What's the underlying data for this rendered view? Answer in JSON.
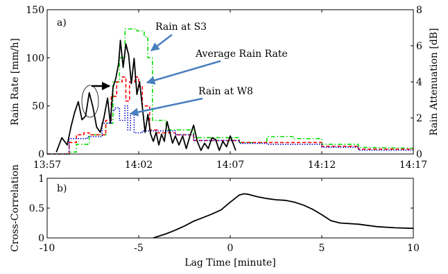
{
  "chart_data": [
    {
      "type": "line",
      "panel_label": "a)",
      "xlabel": "",
      "x_ticks": [
        "13:57",
        "14:02",
        "14:07",
        "14:12",
        "14:17"
      ],
      "xlim": [
        0,
        20
      ],
      "ylabel": "Rain Rate [mm/h]",
      "ylim": [
        0,
        150
      ],
      "y_ticks": [
        0,
        50,
        100,
        150
      ],
      "y2label": "Rain Attenuation [dB]",
      "y2lim": [
        0,
        8
      ],
      "y2_ticks": [
        0,
        2,
        4,
        6,
        8
      ],
      "annotations": [
        {
          "text": "Rain at S3",
          "points_to": "S3 rain peak"
        },
        {
          "text": "Average Rain Rate",
          "points_to": "average rain rate peak"
        },
        {
          "text": "Rain at W8",
          "points_to": "W8 rain peak"
        }
      ],
      "series": [
        {
          "name": "Rain at S3",
          "axis": "left",
          "color": "#00dd00",
          "style": "dash-dot",
          "x": [
            0.0,
            1.3,
            1.3,
            1.6,
            1.6,
            2.3,
            2.3,
            3.2,
            3.2,
            3.6,
            3.6,
            3.95,
            3.95,
            4.25,
            4.25,
            4.9,
            4.9,
            5.3,
            5.3,
            5.5,
            5.5,
            5.75,
            5.75,
            6.5,
            6.5,
            8.0,
            8.0,
            10.5,
            10.5,
            12.0,
            12.0,
            13.5,
            13.5,
            15.0,
            15.0,
            17.0,
            17.0,
            20.0
          ],
          "y": [
            0,
            0,
            2,
            2,
            10,
            10,
            20,
            20,
            32,
            32,
            75,
            75,
            100,
            100,
            130,
            130,
            128,
            128,
            122,
            122,
            100,
            100,
            35,
            35,
            25,
            25,
            17,
            17,
            12,
            12,
            18,
            18,
            16,
            16,
            10,
            10,
            7,
            6
          ]
        },
        {
          "name": "Average Rain Rate",
          "axis": "left",
          "color": "#ff0000",
          "style": "dashed",
          "x": [
            0.0,
            1.2,
            1.2,
            1.6,
            1.6,
            2.0,
            2.0,
            2.3,
            2.3,
            3.2,
            3.2,
            3.5,
            3.5,
            3.8,
            3.8,
            4.1,
            4.1,
            4.3,
            4.3,
            4.5,
            4.5,
            4.8,
            4.8,
            5.0,
            5.0,
            5.2,
            5.2,
            5.6,
            5.6,
            6.0,
            6.0,
            7.0,
            7.0,
            8.0,
            8.0,
            10.5,
            10.5,
            12.0,
            12.0,
            15.0,
            15.0,
            17.0,
            17.0,
            20.0
          ],
          "y": [
            0,
            0,
            12,
            12,
            20,
            20,
            22,
            22,
            20,
            20,
            35,
            35,
            60,
            60,
            75,
            75,
            80,
            80,
            55,
            55,
            75,
            75,
            80,
            80,
            70,
            70,
            50,
            50,
            25,
            25,
            22,
            22,
            20,
            20,
            14,
            14,
            12,
            12,
            12,
            12,
            8,
            8,
            5,
            5
          ]
        },
        {
          "name": "Rain at W8",
          "axis": "left",
          "color": "#0000cc",
          "style": "dotted",
          "x": [
            0.0,
            1.2,
            1.2,
            2.2,
            2.2,
            3.0,
            3.0,
            3.5,
            3.5,
            3.7,
            3.7,
            3.95,
            3.95,
            4.25,
            4.25,
            4.4,
            4.4,
            4.55,
            4.55,
            4.75,
            4.75,
            5.2,
            5.2,
            5.5,
            5.5,
            7.0,
            7.0,
            8.0,
            8.0,
            10.5,
            10.5,
            12.0,
            12.0,
            15.0,
            15.0,
            17.0,
            17.0,
            20.0
          ],
          "y": [
            0,
            0,
            16,
            16,
            18,
            18,
            32,
            32,
            45,
            45,
            48,
            48,
            35,
            35,
            50,
            50,
            25,
            25,
            42,
            42,
            22,
            22,
            24,
            24,
            24,
            24,
            20,
            20,
            14,
            14,
            11,
            11,
            10,
            10,
            7,
            7,
            4,
            4
          ]
        },
        {
          "name": "Rain Attenuation",
          "axis": "right",
          "color": "#000000",
          "style": "solid",
          "x": [
            0.5,
            0.8,
            1.1,
            1.3,
            1.5,
            1.7,
            1.9,
            2.1,
            2.3,
            2.5,
            2.7,
            2.9,
            3.1,
            3.3,
            3.45,
            3.6,
            3.75,
            3.9,
            4.0,
            4.15,
            4.3,
            4.45,
            4.6,
            4.75,
            4.9,
            5.05,
            5.2,
            5.35,
            5.5,
            5.65,
            5.8,
            5.95,
            6.1,
            6.25,
            6.4,
            6.55,
            6.7,
            6.85,
            7.0,
            7.2,
            7.4,
            7.6,
            7.8,
            8.0,
            8.2,
            8.4,
            8.6,
            8.8,
            9.0,
            9.2,
            9.4,
            9.6,
            9.8,
            10.0,
            10.3
          ],
          "y": [
            0.1,
            0.9,
            0.5,
            1.5,
            2.3,
            2.9,
            1.9,
            2.1,
            3.4,
            2.6,
            1.5,
            1.2,
            2.0,
            3.1,
            1.7,
            3.7,
            4.2,
            5.0,
            6.3,
            4.8,
            6.1,
            5.5,
            3.9,
            5.3,
            3.3,
            4.0,
            2.6,
            1.2,
            2.2,
            1.1,
            0.7,
            1.2,
            0.5,
            1.1,
            0.7,
            1.8,
            1.2,
            0.6,
            1.0,
            0.5,
            1.0,
            0.3,
            1.0,
            1.6,
            0.7,
            0.2,
            0.6,
            0.3,
            0.9,
            0.8,
            0.2,
            0.7,
            0.4,
            1.0,
            0.2
          ]
        }
      ]
    },
    {
      "type": "line",
      "panel_label": "b)",
      "xlabel": "Lag Time [minute]",
      "ylabel": "Cross-Correlation",
      "xlim": [
        -10,
        10
      ],
      "ylim": [
        0,
        1
      ],
      "x_ticks": [
        -10,
        -5,
        0,
        5,
        10
      ],
      "y_ticks": [
        0,
        0.5,
        1
      ],
      "y_tick_labels": [
        "0",
        "0.5",
        "1"
      ],
      "series": [
        {
          "color": "#000000",
          "x": [
            -4.2,
            -3.5,
            -3.0,
            -2.5,
            -2.0,
            -1.5,
            -1.0,
            -0.5,
            0.0,
            0.5,
            0.75,
            1.0,
            1.5,
            2.0,
            2.5,
            3.0,
            3.5,
            4.0,
            4.5,
            5.0,
            5.5,
            6.0,
            7.0,
            8.0,
            9.0,
            10.0
          ],
          "y": [
            0.0,
            0.07,
            0.13,
            0.2,
            0.28,
            0.34,
            0.4,
            0.47,
            0.6,
            0.72,
            0.74,
            0.73,
            0.69,
            0.66,
            0.64,
            0.63,
            0.6,
            0.55,
            0.48,
            0.39,
            0.29,
            0.25,
            0.23,
            0.19,
            0.17,
            0.16
          ]
        }
      ]
    }
  ]
}
